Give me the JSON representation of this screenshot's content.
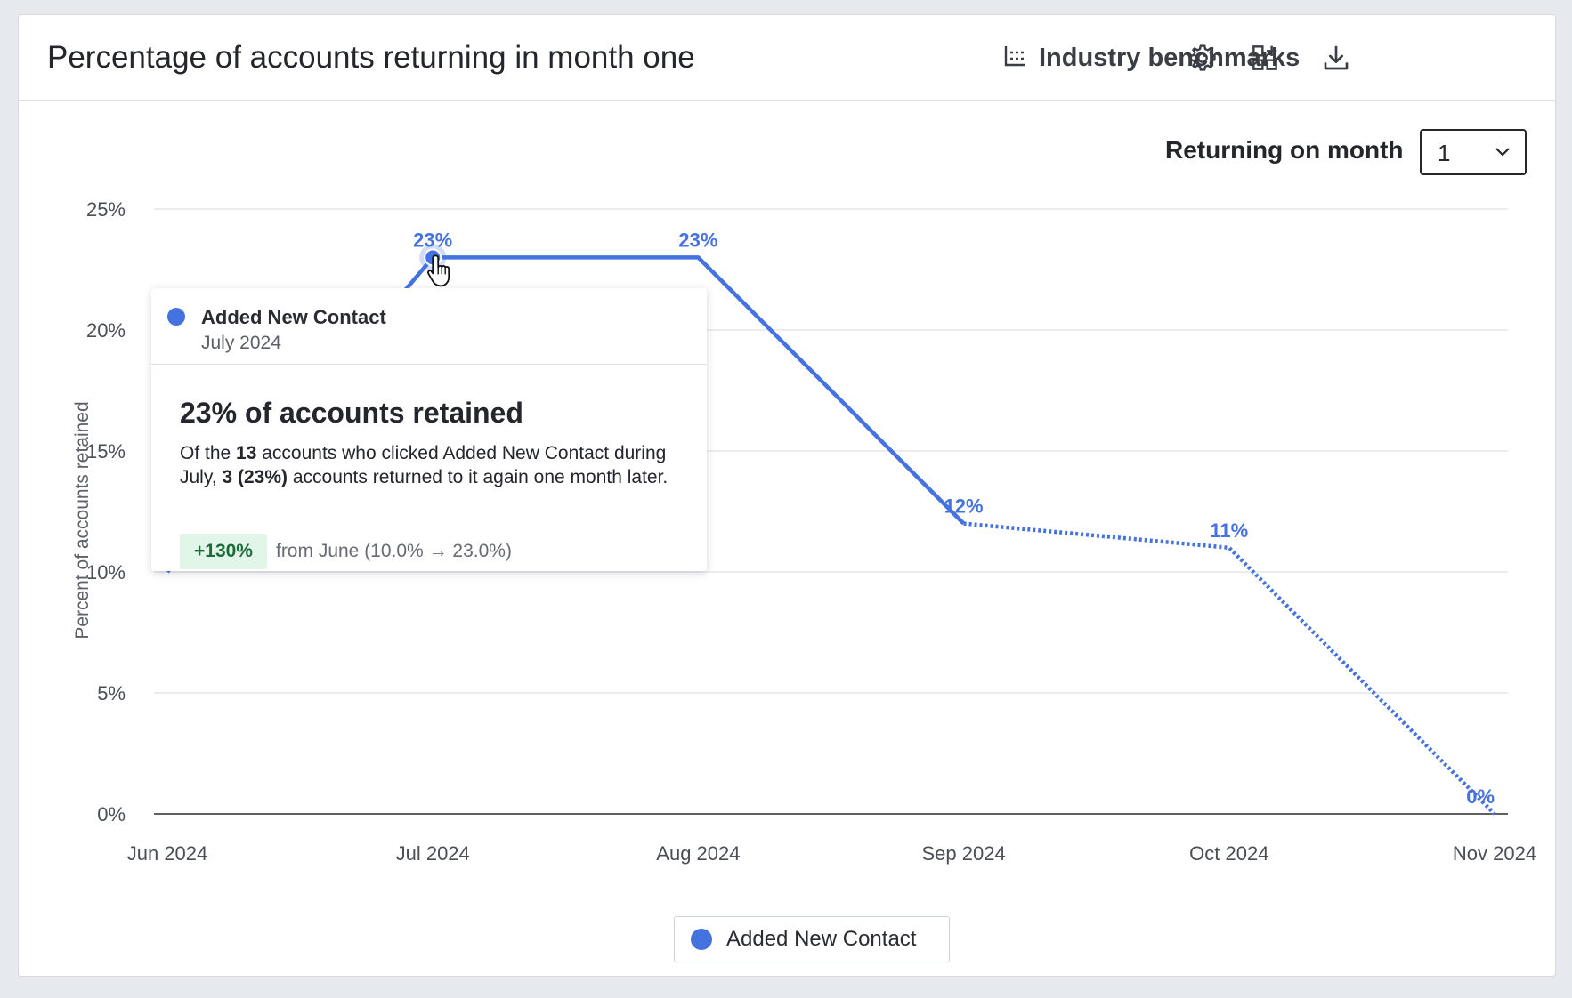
{
  "header": {
    "title": "Percentage of accounts returning in month one",
    "benchmarks_label": "Industry benchmarks",
    "icons": [
      "benchmark-chart-icon",
      "gear-icon",
      "add-widget-icon",
      "download-icon"
    ]
  },
  "controls": {
    "returning_label": "Returning on month",
    "returning_value": "1"
  },
  "colors": {
    "series": "#4472e0",
    "grid": "#dfe2e7",
    "badge_bg": "#e1f5e8",
    "badge_text": "#1c6b3a"
  },
  "chart_data": {
    "type": "line",
    "categories": [
      "Jun 2024",
      "Jul 2024",
      "Aug 2024",
      "Sep 2024",
      "Oct 2024",
      "Nov 2024"
    ],
    "series": [
      {
        "name": "Added New Contact",
        "values": [
          10,
          23,
          23,
          12,
          11,
          0
        ],
        "data_labels": [
          "",
          "23%",
          "23%",
          "12%",
          "11%",
          "0%"
        ],
        "solid_through_index": 3,
        "dotted_from_index": 3
      }
    ],
    "ylabel": "Percent of accounts retained",
    "ylim": [
      0,
      25
    ],
    "yticks": [
      0,
      5,
      10,
      15,
      20,
      25
    ],
    "ytick_labels": [
      "0%",
      "5%",
      "10%",
      "15%",
      "20%",
      "25%"
    ],
    "grid": true,
    "legend_position": "bottom-center"
  },
  "tooltip": {
    "series": "Added New Contact",
    "period": "July 2024",
    "headline": "23% of accounts retained",
    "desc_1": "Of the ",
    "desc_count": "13",
    "desc_2": " accounts who clicked Added New Contact during July, ",
    "desc_returned": "3 (23%)",
    "desc_3": " accounts returned to it again one month later.",
    "change_badge": "+130%",
    "change_text": "from June (10.0% → 23.0%)"
  },
  "legend": {
    "label": "Added New Contact"
  }
}
